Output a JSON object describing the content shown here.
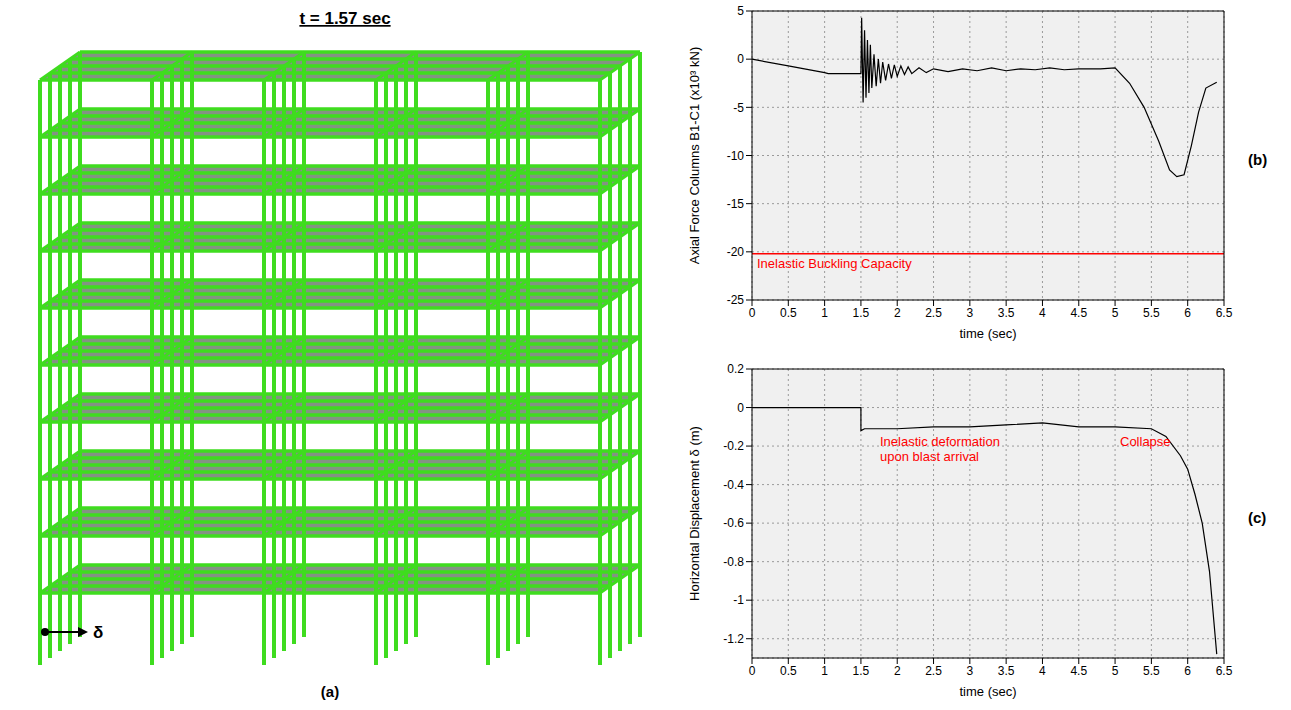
{
  "figure": {
    "label": "(a)",
    "title": "t = 1.57 sec",
    "marker_label": "δ"
  },
  "chart_data": [
    {
      "type": "line",
      "panel_label": "(b)",
      "x_label": "time (sec)",
      "y_label": "Axial Force Columns B1-C1 (x10³ kN)",
      "xlim": [
        0,
        6.5
      ],
      "xticks": [
        0,
        0.5,
        1,
        1.5,
        2,
        2.5,
        3,
        3.5,
        4,
        4.5,
        5,
        5.5,
        6,
        6.5
      ],
      "ylim": [
        -25,
        5
      ],
      "yticks": [
        -25,
        -20,
        -15,
        -10,
        -5,
        0,
        5
      ],
      "grid": true,
      "color": "#000000",
      "x": [
        0,
        0.5,
        1,
        1.05,
        1.5,
        1.51,
        1.53,
        1.55,
        1.57,
        1.59,
        1.61,
        1.63,
        1.65,
        1.68,
        1.71,
        1.74,
        1.77,
        1.8,
        1.84,
        1.88,
        1.92,
        1.96,
        2.0,
        2.05,
        2.1,
        2.15,
        2.2,
        2.3,
        2.4,
        2.5,
        2.7,
        2.9,
        3.1,
        3.3,
        3.5,
        3.7,
        3.9,
        4.1,
        4.3,
        4.5,
        4.8,
        5.0,
        5.2,
        5.4,
        5.6,
        5.75,
        5.85,
        5.95,
        6.05,
        6.15,
        6.25,
        6.4
      ],
      "values": [
        0,
        -0.7,
        -1.4,
        -1.5,
        -1.5,
        4.3,
        -4.5,
        3,
        -4,
        2,
        -3.5,
        1.5,
        -3,
        0.5,
        -2.8,
        0,
        -2.5,
        -0.3,
        -2.2,
        -0.5,
        -2,
        -0.6,
        -1.8,
        -0.7,
        -1.6,
        -0.8,
        -1.5,
        -0.9,
        -1.4,
        -1.0,
        -1.3,
        -1.0,
        -1.2,
        -0.9,
        -1.2,
        -1.0,
        -1.1,
        -0.9,
        -1.1,
        -1.0,
        -1.0,
        -0.9,
        -2.5,
        -5,
        -8.5,
        -11.5,
        -12.2,
        -12,
        -9,
        -5.5,
        -3,
        -2.4
      ],
      "reference_lines": [
        {
          "value": -20.2,
          "label": "Inelastic Buckling Capacity",
          "color": "#ff0000"
        }
      ]
    },
    {
      "type": "line",
      "panel_label": "(c)",
      "x_label": "time (sec)",
      "y_label": "Horizontal Displacement δ (m)",
      "xlim": [
        0,
        6.5
      ],
      "xticks": [
        0,
        0.5,
        1,
        1.5,
        2,
        2.5,
        3,
        3.5,
        4,
        4.5,
        5,
        5.5,
        6,
        6.5
      ],
      "ylim": [
        -1.3,
        0.2
      ],
      "yticks": [
        -1.2,
        -1,
        -0.8,
        -0.6,
        -0.4,
        -0.2,
        0,
        0.2
      ],
      "grid": true,
      "color": "#000000",
      "x": [
        0,
        1.5,
        1.5,
        1.55,
        2,
        2.5,
        3,
        3.5,
        4,
        4.5,
        5,
        5.5,
        5.7,
        5.9,
        6.0,
        6.1,
        6.2,
        6.3,
        6.4
      ],
      "values": [
        0,
        0,
        -0.12,
        -0.11,
        -0.11,
        -0.1,
        -0.1,
        -0.09,
        -0.08,
        -0.1,
        -0.1,
        -0.11,
        -0.15,
        -0.25,
        -0.32,
        -0.45,
        -0.6,
        -0.85,
        -1.28
      ],
      "annotations": [
        {
          "text": "Inelastic deformation\nupon blast arrival",
          "color": "#ff0000"
        },
        {
          "text": "Collapse",
          "color": "#ff0000"
        }
      ]
    }
  ]
}
